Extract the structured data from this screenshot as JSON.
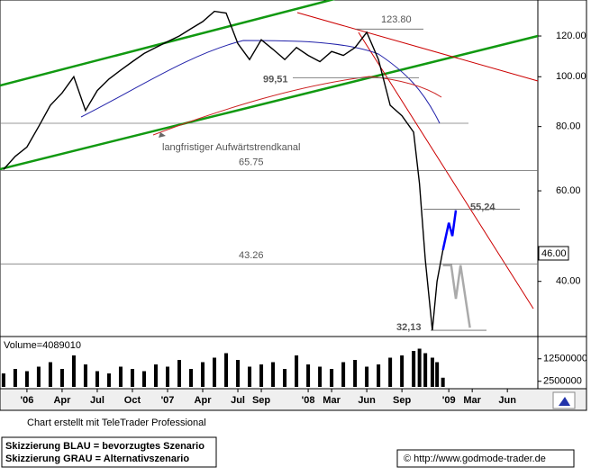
{
  "chart_data": {
    "type": "line",
    "log_y": true,
    "xlim": [
      -2.3,
      43.6
    ],
    "xticks": [
      {
        "value": 0,
        "label": "'06"
      },
      {
        "value": 3,
        "label": "Apr"
      },
      {
        "value": 6,
        "label": "Jul"
      },
      {
        "value": 9,
        "label": "Oct"
      },
      {
        "value": 12,
        "label": "'07"
      },
      {
        "value": 15,
        "label": "Apr"
      },
      {
        "value": 18,
        "label": "Jul"
      },
      {
        "value": 20,
        "label": "Sep"
      },
      {
        "value": 24,
        "label": "'08"
      },
      {
        "value": 26,
        "label": "Mar"
      },
      {
        "value": 29,
        "label": "Jun"
      },
      {
        "value": 32,
        "label": "Sep"
      },
      {
        "value": 36,
        "label": "'09"
      },
      {
        "value": 38,
        "label": "Mar"
      },
      {
        "value": 41,
        "label": "Jun"
      }
    ],
    "ylim": [
      31.5,
      141
    ],
    "yticks": [
      {
        "value": 40,
        "label": "40.00"
      },
      {
        "value": 60,
        "label": "60.00"
      },
      {
        "value": 80,
        "label": "80.00"
      },
      {
        "value": 100,
        "label": "100.00"
      },
      {
        "value": 120,
        "label": "120.00"
      }
    ],
    "series": [
      {
        "color": "#000000",
        "x": [
          -2,
          -1,
          0,
          1,
          2,
          3,
          4,
          5,
          6,
          7,
          8,
          9,
          10,
          11,
          12,
          13,
          14,
          15,
          16,
          17,
          18,
          19,
          20,
          21,
          22,
          23,
          24,
          25,
          26,
          27,
          28,
          29,
          30,
          31,
          32,
          33,
          33.5,
          34,
          34.6,
          35,
          35.5
        ],
        "values": [
          66,
          70,
          73,
          80,
          88,
          93,
          100,
          86,
          94,
          99,
          103,
          107,
          111,
          114,
          117,
          120,
          124,
          128,
          134,
          133,
          116,
          108,
          118,
          113,
          108,
          114,
          110,
          107,
          112,
          110,
          114,
          122,
          108,
          88,
          84,
          78,
          62,
          44,
          32.13,
          40,
          46
        ]
      },
      {
        "color": "#0000ff",
        "x": [
          35.5,
          36,
          36.3,
          36.6
        ],
        "values": [
          46,
          52,
          49,
          55
        ]
      },
      {
        "color": "#aaaaaa",
        "x": [
          35.5,
          36.2,
          36.6,
          37,
          37.8
        ],
        "values": [
          43,
          43,
          37,
          43,
          32.5
        ]
      }
    ],
    "last_price": {
      "value": 46,
      "label": "46.00"
    },
    "levels": {
      "values": [
        123.8,
        99.51,
        65.75,
        55.24,
        43.26,
        32.13
      ],
      "value_labels": [
        "123.80",
        "99,51",
        "65.75",
        "55,24",
        "43.26",
        "32,13"
      ]
    },
    "annotation": "langfristiger Aufwärtstrendkanal",
    "volume": {
      "label": "Volume=4089010",
      "values": [
        6000000,
        8000000,
        7000000,
        9000000,
        11000000,
        8000000,
        14000000,
        10000000,
        7000000,
        6000000,
        9000000,
        8000000,
        7000000,
        10000000,
        9000000,
        12000000,
        8000000,
        11000000,
        13000000,
        15000000,
        12000000,
        9000000,
        10000000,
        11000000,
        8000000,
        14000000,
        10000000,
        9000000,
        8000000,
        11000000,
        12000000,
        9000000,
        10000000,
        13000000,
        14000000,
        16000000,
        17000000,
        15000000,
        13000000,
        11000000,
        4089010
      ],
      "ylim": [
        0,
        20800000
      ],
      "yticks": [
        2500000,
        12500000
      ]
    },
    "credit": "Chart erstellt mit TeleTrader Professional",
    "legend_blue": "Skizzierung BLAU = bevorzugtes Szenario",
    "legend_gray": "Skizzierung GRAU = Alternativszenario",
    "source": "© http://www.godmode-trader.de"
  }
}
